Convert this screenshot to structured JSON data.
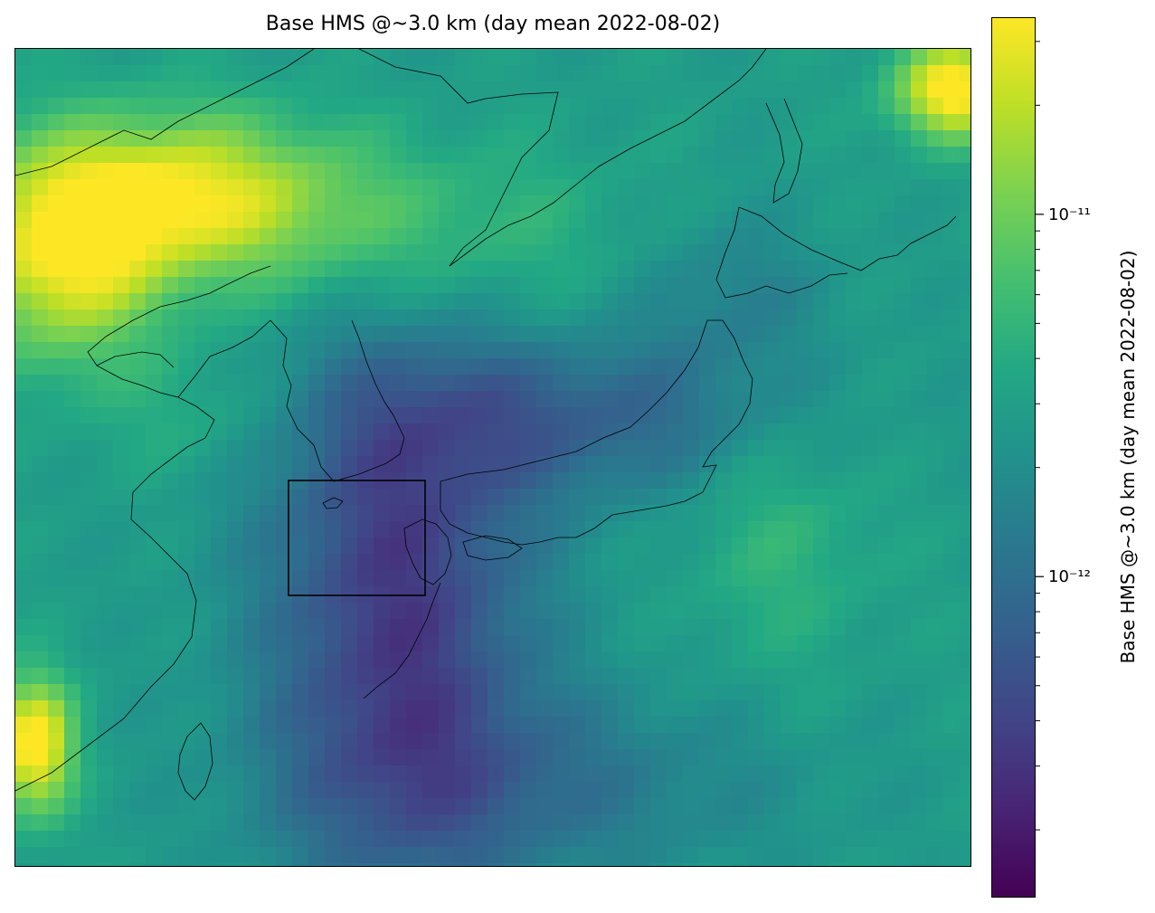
{
  "chart_data": {
    "type": "heatmap",
    "title": "Base HMS @~3.0 km (day mean 2022-08-02)",
    "colorbar": {
      "label": "Base HMS @~3.0 km (day mean 2022-08-02)",
      "scale": "log",
      "colormap": "viridis",
      "range": [
        1.3e-13,
        3.5e-11
      ],
      "major_ticks": [
        {
          "value": 1e-12,
          "label": "10⁻¹²"
        },
        {
          "value": 1e-11,
          "label": "10⁻¹¹"
        }
      ]
    },
    "map": {
      "region": "East Asia (Korea, Japan, East China Sea)",
      "coastlines": true,
      "highlight_box": "rectangle around Jeju / East China Sea south of Korea"
    }
  },
  "colors": {
    "viridis_low": "#440154",
    "viridis_mid": "#21918c",
    "viridis_high": "#fde725",
    "coastline": "#000000"
  }
}
